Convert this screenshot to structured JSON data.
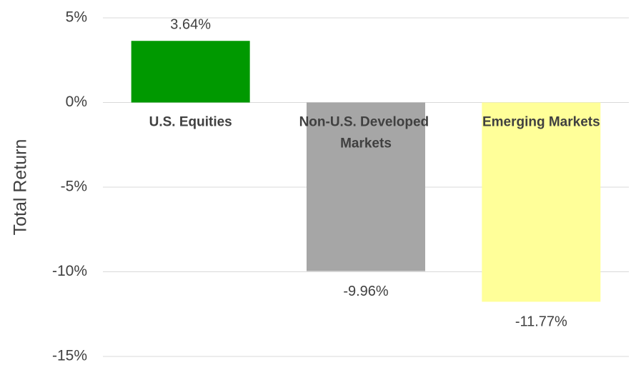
{
  "chart_data": {
    "type": "bar",
    "y_label": "Total Return",
    "categories": [
      "U.S. Equities",
      "Non-U.S. Developed Markets",
      "Emerging Markets"
    ],
    "values": [
      3.64,
      -9.96,
      -11.77
    ],
    "value_labels": [
      "3.64%",
      "-9.96%",
      "-11.77%"
    ],
    "colors": [
      "#009900",
      "#a6a6a6",
      "#ffff99"
    ],
    "ylim": [
      -15,
      5
    ],
    "yticks": [
      {
        "value": -15,
        "label": "-15%"
      },
      {
        "value": -10,
        "label": "-10%"
      },
      {
        "value": -5,
        "label": "-5%"
      },
      {
        "value": 0,
        "label": "0%"
      },
      {
        "value": 5,
        "label": "5%"
      }
    ],
    "grid": true
  }
}
